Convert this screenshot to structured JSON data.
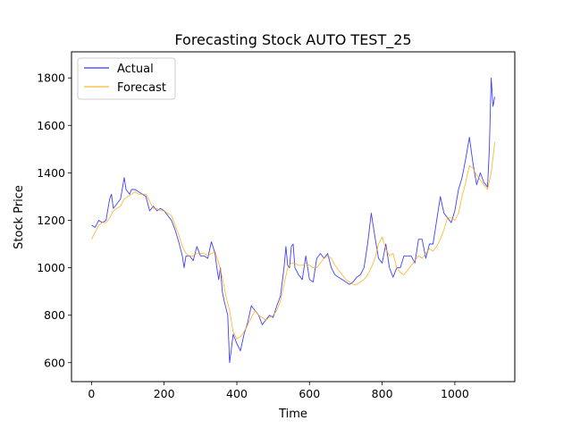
{
  "chart_data": {
    "type": "line",
    "title": "Forecasting Stock AUTO TEST_25",
    "xlabel": "Time",
    "ylabel": "Stock Price",
    "xlim": [
      -55,
      1165
    ],
    "ylim": [
      520,
      1910
    ],
    "xticks": [
      0,
      200,
      400,
      600,
      800,
      1000
    ],
    "yticks": [
      600,
      800,
      1000,
      1200,
      1400,
      1600,
      1800
    ],
    "grid": false,
    "legend_position": "top-left",
    "series": [
      {
        "name": "Actual",
        "color": "#0000ff",
        "x": [
          0,
          10,
          20,
          30,
          40,
          50,
          55,
          60,
          65,
          70,
          80,
          90,
          95,
          100,
          105,
          110,
          120,
          130,
          140,
          150,
          160,
          170,
          180,
          190,
          200,
          210,
          220,
          230,
          240,
          250,
          255,
          260,
          270,
          280,
          290,
          300,
          310,
          320,
          330,
          340,
          345,
          350,
          355,
          360,
          365,
          370,
          375,
          380,
          390,
          400,
          410,
          420,
          430,
          440,
          450,
          460,
          470,
          480,
          490,
          500,
          510,
          520,
          530,
          535,
          540,
          545,
          550,
          555,
          560,
          570,
          580,
          590,
          600,
          610,
          620,
          630,
          640,
          650,
          660,
          670,
          680,
          690,
          700,
          710,
          720,
          730,
          740,
          750,
          760,
          770,
          780,
          790,
          800,
          810,
          820,
          830,
          840,
          850,
          860,
          870,
          880,
          890,
          900,
          910,
          920,
          930,
          940,
          950,
          960,
          970,
          980,
          990,
          1000,
          1010,
          1020,
          1030,
          1040,
          1050,
          1060,
          1070,
          1080,
          1090,
          1095,
          1100,
          1105,
          1110
        ],
        "values": [
          1180,
          1170,
          1200,
          1190,
          1200,
          1290,
          1310,
          1250,
          1260,
          1270,
          1290,
          1380,
          1330,
          1320,
          1310,
          1330,
          1330,
          1320,
          1310,
          1300,
          1240,
          1260,
          1240,
          1250,
          1240,
          1220,
          1200,
          1160,
          1110,
          1050,
          1000,
          1050,
          1050,
          1030,
          1090,
          1050,
          1050,
          1040,
          1110,
          1060,
          1000,
          950,
          1000,
          900,
          860,
          830,
          800,
          600,
          720,
          680,
          650,
          720,
          770,
          840,
          820,
          800,
          760,
          780,
          800,
          790,
          840,
          880,
          1000,
          1090,
          1010,
          1000,
          1090,
          1100,
          1000,
          970,
          950,
          1050,
          950,
          940,
          1040,
          1060,
          1040,
          1060,
          1000,
          970,
          960,
          950,
          940,
          930,
          940,
          960,
          970,
          1000,
          1100,
          1230,
          1130,
          1040,
          1020,
          1100,
          1000,
          960,
          1000,
          1000,
          1050,
          1050,
          1050,
          1020,
          1120,
          1120,
          1040,
          1100,
          1100,
          1200,
          1300,
          1230,
          1210,
          1190,
          1240,
          1330,
          1380,
          1460,
          1550,
          1440,
          1350,
          1400,
          1360,
          1340,
          1500,
          1800,
          1680,
          1720
        ]
      },
      {
        "name": "Forecast",
        "color": "#ffa500",
        "x": [
          0,
          10,
          20,
          30,
          40,
          50,
          60,
          70,
          80,
          90,
          100,
          110,
          120,
          130,
          140,
          150,
          160,
          170,
          180,
          190,
          200,
          210,
          220,
          230,
          240,
          250,
          260,
          270,
          280,
          290,
          300,
          310,
          320,
          330,
          340,
          350,
          360,
          370,
          380,
          390,
          400,
          410,
          420,
          430,
          440,
          450,
          460,
          470,
          480,
          490,
          500,
          510,
          520,
          530,
          540,
          550,
          560,
          570,
          580,
          590,
          600,
          610,
          620,
          630,
          640,
          650,
          660,
          670,
          680,
          690,
          700,
          710,
          720,
          730,
          740,
          750,
          760,
          770,
          780,
          790,
          800,
          810,
          820,
          830,
          840,
          850,
          860,
          870,
          880,
          890,
          900,
          910,
          920,
          930,
          940,
          950,
          960,
          970,
          980,
          990,
          1000,
          1010,
          1020,
          1030,
          1040,
          1050,
          1060,
          1070,
          1080,
          1090,
          1100,
          1110
        ],
        "values": [
          1120,
          1150,
          1180,
          1190,
          1190,
          1210,
          1240,
          1250,
          1260,
          1290,
          1300,
          1310,
          1320,
          1310,
          1310,
          1310,
          1280,
          1250,
          1250,
          1240,
          1240,
          1230,
          1220,
          1180,
          1140,
          1090,
          1060,
          1050,
          1050,
          1060,
          1060,
          1060,
          1050,
          1060,
          1070,
          1020,
          960,
          880,
          820,
          730,
          700,
          710,
          730,
          760,
          790,
          820,
          800,
          790,
          780,
          790,
          800,
          820,
          860,
          930,
          1000,
          1020,
          1020,
          1010,
          1010,
          1020,
          1010,
          1000,
          1000,
          1020,
          1040,
          1050,
          1040,
          1010,
          990,
          970,
          950,
          940,
          930,
          930,
          940,
          950,
          970,
          1000,
          1040,
          1100,
          1130,
          1080,
          1050,
          1060,
          1000,
          980,
          970,
          990,
          1010,
          1030,
          1050,
          1040,
          1060,
          1080,
          1070,
          1090,
          1120,
          1160,
          1210,
          1210,
          1200,
          1230,
          1300,
          1360,
          1430,
          1420,
          1390,
          1370,
          1350,
          1330,
          1400,
          1530
        ]
      }
    ]
  }
}
